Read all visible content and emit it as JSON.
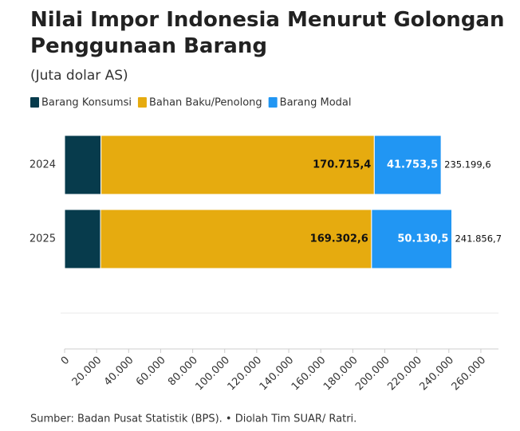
{
  "chart_data": {
    "type": "stacked-bar-horizontal",
    "title": "Nilai Impor Indonesia Menurut Golongan Penggunaan Barang",
    "subtitle": "(Juta dolar AS)",
    "categories": [
      "2024",
      "2025"
    ],
    "series": [
      {
        "name": "Barang Konsumsi",
        "color": "#073b4c",
        "values": [
          22730.7,
          22423.6
        ]
      },
      {
        "name": "Bahan Baku/Penolong",
        "color": "#e6ab0f",
        "values": [
          170715.4,
          169302.6
        ],
        "value_labels": [
          "170.715,4",
          "169.302,6"
        ]
      },
      {
        "name": "Barang Modal",
        "color": "#2196f3",
        "values": [
          41753.5,
          50130.5
        ],
        "value_labels": [
          "41.753,5",
          "50.130,5"
        ]
      }
    ],
    "totals": {
      "values": [
        235199.6,
        241856.7
      ],
      "value_labels": [
        "235.199,6",
        "241.856,7"
      ]
    },
    "xlim": [
      0,
      271000
    ],
    "xticks": [
      0,
      {
        "value": 20000,
        "label": "20.000"
      },
      {
        "value": 40000,
        "label": "40.000"
      },
      {
        "value": 60000,
        "label": "60.000"
      },
      {
        "value": 80000,
        "label": "80.000"
      },
      {
        "value": 100000,
        "label": "100.000"
      },
      {
        "value": 120000,
        "label": "120.000"
      },
      {
        "value": 140000,
        "label": "140.000"
      },
      {
        "value": 160000,
        "label": "160.000"
      },
      {
        "value": 180000,
        "label": "180.000"
      },
      {
        "value": 200000,
        "label": "200.000"
      },
      {
        "value": 220000,
        "label": "220.000"
      },
      {
        "value": 240000,
        "label": "240.000"
      },
      {
        "value": 260000,
        "label": "260.000"
      }
    ],
    "source": "Sumber: Badan Pusat Statistik (BPS). • Diolah Tim SUAR/ Ratri."
  }
}
